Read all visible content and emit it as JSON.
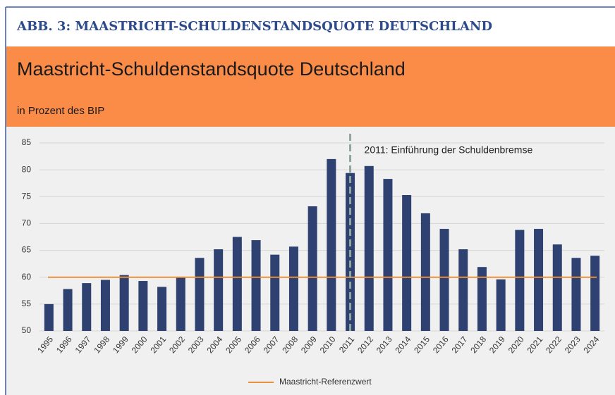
{
  "header": "ABB. 3: MAASTRICHT-SCHULDENSTANDSQUOTE DEUTSCHLAND",
  "chart_data": {
    "type": "bar",
    "title": "Maastricht-Schuldenstandsquote Deutschland",
    "subtitle": "in Prozent des BIP",
    "categories": [
      "1995",
      "1996",
      "1997",
      "1998",
      "1999",
      "2000",
      "2001",
      "2002",
      "2003",
      "2004",
      "2005",
      "2006",
      "2007",
      "2008",
      "2009",
      "2010",
      "2011",
      "2012",
      "2013",
      "2014",
      "2015",
      "2016",
      "2017",
      "2018",
      "2019",
      "2020",
      "2021",
      "2022",
      "2023",
      "2024"
    ],
    "values": [
      55.0,
      57.8,
      58.9,
      59.5,
      60.4,
      59.3,
      58.2,
      60.0,
      63.6,
      65.2,
      67.5,
      66.9,
      64.2,
      65.7,
      73.2,
      82.0,
      79.4,
      80.7,
      78.3,
      75.3,
      71.9,
      69.0,
      65.2,
      61.9,
      59.6,
      68.8,
      69.0,
      66.1,
      63.6,
      64.0
    ],
    "color": "#2e4171",
    "ylim": [
      50,
      85
    ],
    "yticks": [
      50,
      55,
      60,
      65,
      70,
      75,
      80,
      85
    ],
    "grid": true,
    "reference_line": {
      "name": "Maastricht-Referenzwert",
      "value": 60,
      "color": "#e8903e"
    },
    "annotation": {
      "text": "2011: Einführung der Schuldenbremse",
      "category": "2011"
    }
  }
}
